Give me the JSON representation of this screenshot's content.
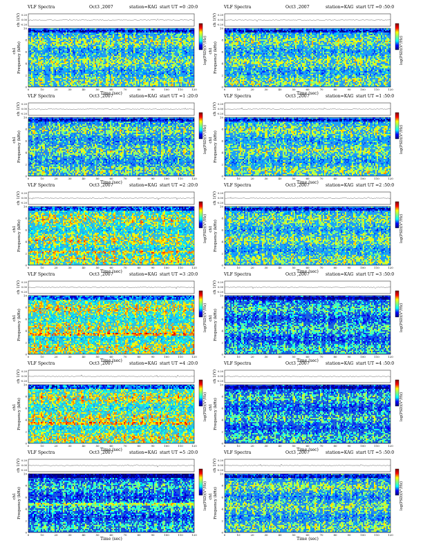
{
  "figure": {
    "x_tick_labels": [
      "0",
      "10",
      "20",
      "30",
      "40",
      "50",
      "60",
      "70",
      "80",
      "90",
      "100",
      "110",
      "120"
    ],
    "y_tick_labels": [
      "0",
      "2",
      "4",
      "6",
      "8",
      "10"
    ],
    "ch_tick_labels": [
      "0.20",
      "0.00",
      "-0.20"
    ],
    "xlabel": "Time (sec)",
    "ylabel_ch": "ch 1(V)",
    "ylabel_spec": "Frequency (kHz)",
    "ylabel_spec_prefix": "ch1",
    "colorbar_label": "log(PSD)(V²/Hz)",
    "colorbar_colors": [
      "#00007f",
      "#0000ff",
      "#00ffff",
      "#7fff7f",
      "#ffff00",
      "#ff0000",
      "#7f0000"
    ]
  },
  "chart_data": [
    {
      "type": "heatmap",
      "title": "VLF Spectra",
      "date": "Oct3 ,2007",
      "station": "station=KAG",
      "start": "start UT =0 :20:0",
      "xlim": [
        0,
        120
      ],
      "ylim": [
        0,
        10
      ],
      "base": 0.4,
      "background": "#2a9af0",
      "line_khz": null,
      "bursts": [
        3,
        8,
        10,
        17,
        21,
        27,
        31,
        36,
        42,
        48,
        52,
        57,
        61,
        66,
        71,
        77,
        84,
        89,
        93,
        99,
        104,
        110,
        116
      ]
    },
    {
      "type": "heatmap",
      "title": "VLF Spectra",
      "date": "Oct3 ,2007",
      "station": "station=KAG",
      "start": "start UT =0 :50:0",
      "xlim": [
        0,
        120
      ],
      "ylim": [
        0,
        10
      ],
      "base": 0.4,
      "background": "#2a9af0",
      "line_khz": null,
      "bursts": [
        5,
        9,
        14,
        20,
        25,
        33,
        38,
        45,
        52,
        58,
        63,
        69,
        75,
        82,
        88,
        94,
        99,
        104,
        111,
        117
      ]
    },
    {
      "type": "heatmap",
      "title": "VLF Spectra",
      "date": "Oct3 ,2007",
      "station": "station=KAG",
      "start": "start UT =1 :20:0",
      "xlim": [
        0,
        120
      ],
      "ylim": [
        0,
        10
      ],
      "base": 0.38,
      "background": "#2a8ae8",
      "line_khz": null,
      "bursts": [
        4,
        11,
        16,
        22,
        29,
        35,
        41,
        49,
        53,
        60,
        67,
        72,
        79,
        85,
        91,
        97,
        102,
        108,
        113,
        118
      ]
    },
    {
      "type": "heatmap",
      "title": "VLF Spectra",
      "date": "Oct3 ,2007",
      "station": "station=KAG",
      "start": "start UT =1 :50:0",
      "xlim": [
        0,
        120
      ],
      "ylim": [
        0,
        10
      ],
      "base": 0.4,
      "background": "#2a9af0",
      "line_khz": null,
      "bursts": [
        3,
        12,
        18,
        24,
        30,
        37,
        43,
        49,
        55,
        61,
        66,
        73,
        79,
        85,
        92,
        98,
        104,
        110,
        116
      ]
    },
    {
      "type": "heatmap",
      "title": "VLF Spectra",
      "date": "Oct3 ,2007",
      "station": "station=KAG",
      "start": "start UT =2 :20:0",
      "xlim": [
        0,
        120
      ],
      "ylim": [
        0,
        10
      ],
      "base": 0.48,
      "background": "#30b8e0",
      "line_khz": 2.5,
      "bursts": [
        6,
        11,
        15,
        19,
        26,
        31,
        36,
        41,
        49,
        55,
        62,
        70,
        76,
        82,
        90,
        98,
        104,
        108
      ]
    },
    {
      "type": "heatmap",
      "title": "VLF Spectra",
      "date": "Oct3 ,2007",
      "station": "station=KAG",
      "start": "start UT =2 :50:0",
      "xlim": [
        0,
        120
      ],
      "ylim": [
        0,
        10
      ],
      "base": 0.4,
      "background": "#2a9af0",
      "line_khz": null,
      "bursts": [
        4,
        10,
        16,
        23,
        28,
        35,
        42,
        49,
        56,
        62,
        69,
        75,
        81,
        87,
        94,
        100,
        106,
        112,
        118
      ]
    },
    {
      "type": "heatmap",
      "title": "VLF Spectra",
      "date": "Oct3 ,2007",
      "station": "station=KAG",
      "start": "start UT =3 :20:0",
      "xlim": [
        0,
        120
      ],
      "ylim": [
        0,
        10
      ],
      "base": 0.5,
      "background": "#36c0d8",
      "line_khz": 3.5,
      "bursts": [
        5,
        9,
        14,
        21,
        27,
        30,
        37,
        44,
        51,
        58,
        64,
        71,
        78,
        85,
        92,
        99,
        105,
        113,
        119
      ]
    },
    {
      "type": "heatmap",
      "title": "VLF Spectra",
      "date": "Oct3 ,2007",
      "station": "station=KAG",
      "start": "start UT =3 :50:0",
      "xlim": [
        0,
        120
      ],
      "ylim": [
        0,
        10
      ],
      "base": 0.3,
      "background": "#1f62d8",
      "line_khz": null,
      "bursts": [
        3,
        8,
        13,
        19,
        26,
        31,
        38,
        44,
        50,
        56,
        63,
        69,
        74,
        81,
        88,
        93,
        99,
        106,
        112,
        118
      ]
    },
    {
      "type": "heatmap",
      "title": "VLF Spectra",
      "date": "Oct3 ,2007",
      "station": "station=KAG",
      "start": "start UT =4 :20:0",
      "xlim": [
        0,
        120
      ],
      "ylim": [
        0,
        10
      ],
      "base": 0.5,
      "background": "#36c0d8",
      "line_khz": 3.5,
      "bursts": [
        4,
        10,
        16,
        22,
        27,
        33,
        39,
        45,
        52,
        58,
        63,
        70,
        76,
        83,
        89,
        95,
        101,
        108,
        114
      ]
    },
    {
      "type": "heatmap",
      "title": "VLF Spectra",
      "date": "Oct3 ,2007",
      "station": "station=KAG",
      "start": "start UT =4 :50:0",
      "xlim": [
        0,
        120
      ],
      "ylim": [
        0,
        10
      ],
      "base": 0.3,
      "background": "#1f62d8",
      "line_khz": null,
      "bursts": [
        5,
        11,
        18,
        24,
        30,
        37,
        43,
        50,
        57,
        63,
        70,
        76,
        82,
        89,
        96,
        102,
        108,
        115
      ]
    },
    {
      "type": "heatmap",
      "title": "VLF Spectra",
      "date": "Oct3 ,2007",
      "station": "station=KAG",
      "start": "start UT =5 :20:0",
      "xlim": [
        0,
        120
      ],
      "ylim": [
        0,
        10
      ],
      "base": 0.28,
      "background": "#1f5ad8",
      "line_khz": 5.0,
      "bursts": [
        7,
        12,
        18,
        26,
        33,
        41,
        48,
        55,
        61,
        67,
        73,
        80,
        86,
        92,
        98,
        104,
        110,
        117
      ]
    },
    {
      "type": "heatmap",
      "title": "VLF Spectra",
      "date": "Oct3 ,2007",
      "station": "station=KAG",
      "start": "start UT =5 :50:0",
      "xlim": [
        0,
        120
      ],
      "ylim": [
        0,
        10
      ],
      "base": 0.38,
      "background": "#2a8ae8",
      "line_khz": null,
      "bursts": [
        4,
        9,
        15,
        21,
        28,
        34,
        40,
        47,
        53,
        60,
        66,
        72,
        78,
        85,
        91,
        97,
        103,
        109,
        116
      ]
    }
  ]
}
